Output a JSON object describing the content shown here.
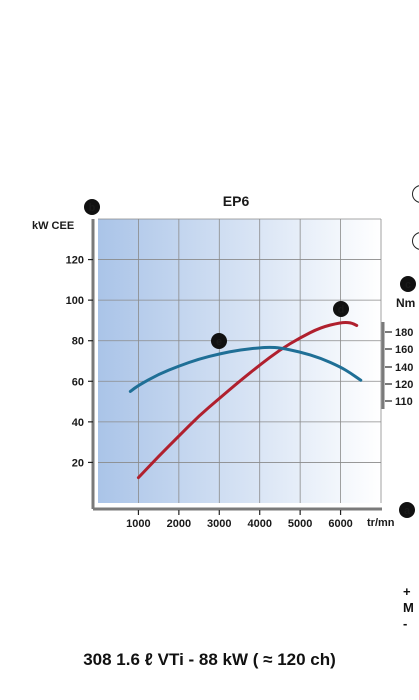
{
  "chart_data": {
    "type": "line",
    "title": "EP6",
    "caption": "308 1.6 ℓ VTi - 88 kW ( ≈ 120 ch)",
    "xlabel": "tr/mn",
    "ylabel_left": "kW CEE",
    "ylabel_right": "Nm",
    "x_ticks": [
      1000,
      2000,
      3000,
      4000,
      5000,
      6000
    ],
    "y_ticks_left": [
      20,
      40,
      60,
      80,
      100,
      120
    ],
    "y_ticks_right": [
      180,
      160,
      140,
      120,
      110
    ],
    "xlim": [
      0,
      7000
    ],
    "ylim_left": [
      0,
      140
    ],
    "grid": true,
    "markers": {
      "left_axis": "b",
      "right_axis": "c",
      "power_curve": "d",
      "torque_curve": "e",
      "x_axis": "a"
    },
    "series": [
      {
        "key": "d",
        "axis": "kW CEE",
        "color": "#b0202e",
        "x": [
          1000,
          1500,
          2000,
          2500,
          3000,
          3500,
          4000,
          4500,
          5000,
          5500,
          6000,
          6250,
          6400
        ],
        "y": [
          12.5,
          23,
          33,
          43,
          51.5,
          60,
          68,
          75.5,
          81.5,
          86.5,
          89,
          89,
          87.5
        ]
      },
      {
        "key": "e",
        "axis": "Nm",
        "color": "#1f6f96",
        "x": [
          800,
          1000,
          1500,
          2000,
          2500,
          3000,
          3500,
          4000,
          4250,
          4500,
          5000,
          5500,
          6000,
          6250,
          6500
        ],
        "y": [
          55,
          58,
          63.5,
          67.5,
          71,
          73.5,
          75.5,
          76.5,
          76.8,
          76.5,
          74.5,
          71.5,
          67,
          64,
          60.5
        ]
      }
    ]
  },
  "side": {
    "plus": "+",
    "letter": "M",
    "minus": "-"
  },
  "colors": {
    "plot_gradient_left": "#aac4e8",
    "plot_gradient_right": "#ffffff",
    "grid": "#8a8a8a",
    "axis": "#7a7a7a"
  }
}
